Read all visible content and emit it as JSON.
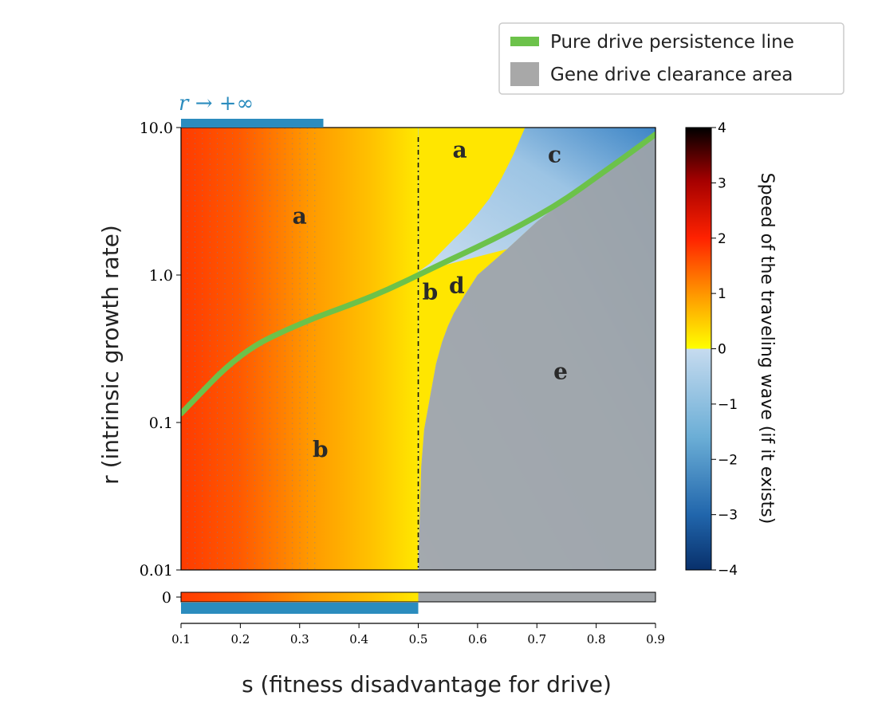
{
  "chart_data": {
    "type": "heatmap",
    "xlabel": "s (fitness disadvantage for drive)",
    "ylabel": "r (intrinsic growth rate)",
    "x_range": [
      0.1,
      0.9
    ],
    "x_ticks": [
      "0.1",
      "0.2",
      "0.3",
      "0.4",
      "0.5",
      "0.6",
      "0.7",
      "0.8",
      "0.9"
    ],
    "x_tick_values": [
      0.1,
      0.2,
      0.3,
      0.4,
      0.5,
      0.6,
      0.7,
      0.8,
      0.9
    ],
    "y_scale": "log",
    "y_range": [
      0.01,
      10
    ],
    "y_ticks": [
      "10.0",
      "1.0",
      "0.1",
      "0.01"
    ],
    "y_tick_values": [
      10,
      1,
      0.1,
      0.01
    ],
    "colorbar": {
      "label": "Speed of the traveling wave (if it exists)",
      "range": [
        -4,
        4
      ],
      "ticks": [
        "4",
        "3",
        "2",
        "1",
        "0",
        "−1",
        "−2",
        "−3",
        "−4"
      ],
      "tick_values": [
        4,
        3,
        2,
        1,
        0,
        -1,
        -2,
        -3,
        -4
      ]
    },
    "legend": {
      "placement": "top-right",
      "entries": [
        {
          "label": "Pure drive persistence line",
          "color": "#6cc24a",
          "kind": "line"
        },
        {
          "label": "Gene drive clearance area",
          "color": "#a8a8a8",
          "kind": "patch"
        }
      ]
    },
    "persistence_line": {
      "s": [
        0.1,
        0.2,
        0.3,
        0.4,
        0.45,
        0.5,
        0.55,
        0.6,
        0.65,
        0.7,
        0.75,
        0.8,
        0.85,
        0.9
      ],
      "r": [
        0.115,
        0.3,
        0.47,
        0.66,
        0.8,
        1.0,
        1.25,
        1.55,
        1.95,
        2.5,
        3.3,
        4.6,
        6.4,
        9.0
      ]
    },
    "clearance_boundary": {
      "s": [
        0.5,
        0.505,
        0.51,
        0.52,
        0.53,
        0.54,
        0.55,
        0.56,
        0.58,
        0.6,
        0.65,
        0.7,
        0.75,
        0.8,
        0.85,
        0.9
      ],
      "r": [
        0.01,
        0.05,
        0.09,
        0.15,
        0.25,
        0.35,
        0.45,
        0.55,
        0.75,
        1.0,
        1.5,
        2.3,
        3.3,
        4.8,
        6.5,
        9.0
      ]
    },
    "positive_region_edge": {
      "s": [
        0.5,
        0.52,
        0.54,
        0.56,
        0.58,
        0.6,
        0.62,
        0.64,
        0.66,
        0.68
      ],
      "r": [
        1.05,
        1.2,
        1.45,
        1.75,
        2.1,
        2.6,
        3.3,
        4.5,
        6.5,
        10
      ]
    },
    "vertical_line_s": 0.5,
    "limit_bar_label": "r → +∞",
    "limit_bar_s_end": 0.34,
    "r_zero_tick": "0",
    "r_zero_bar_s_end": 0.5,
    "region_labels": [
      {
        "text": "a",
        "s": 0.3,
        "r": 2.5
      },
      {
        "text": "a",
        "s": 0.57,
        "r": 7.0
      },
      {
        "text": "b",
        "s": 0.335,
        "r": 0.065
      },
      {
        "text": "b",
        "s": 0.52,
        "r": 0.76
      },
      {
        "text": "c",
        "s": 0.73,
        "r": 6.5
      },
      {
        "text": "d",
        "s": 0.565,
        "r": 0.84
      },
      {
        "text": "e",
        "s": 0.74,
        "r": 0.22
      }
    ]
  }
}
